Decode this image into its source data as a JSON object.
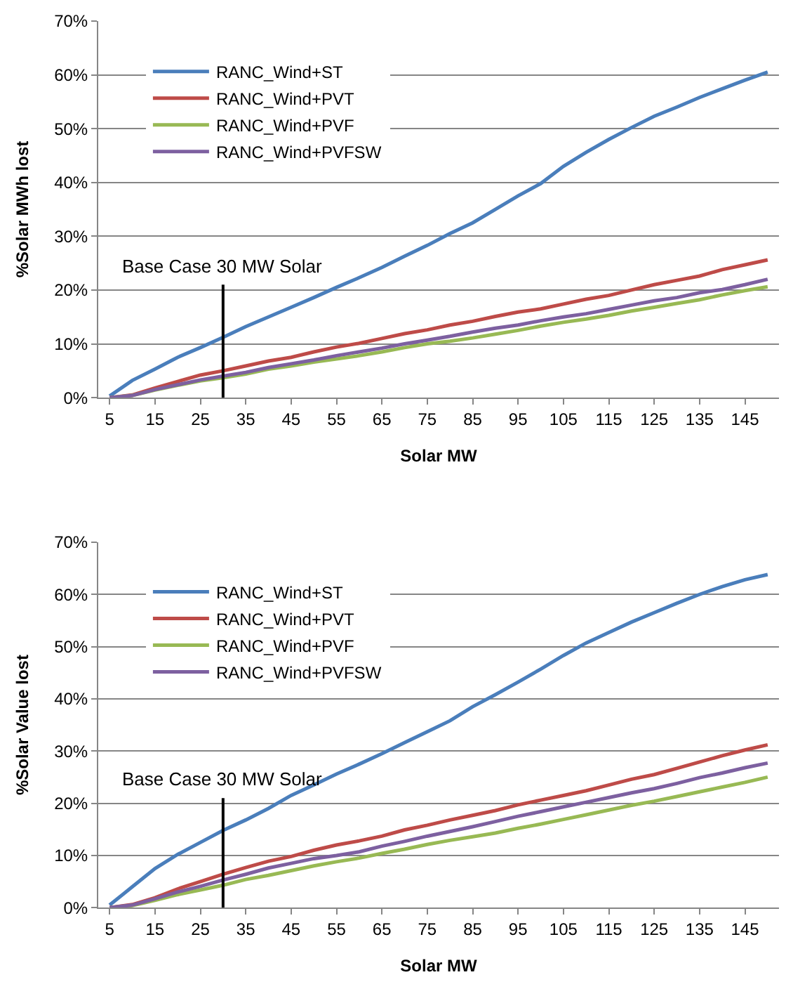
{
  "chart_data": [
    {
      "type": "line",
      "xlabel": "Solar MW",
      "ylabel": "%Solar MWh lost",
      "grid": "y",
      "legend": "top left",
      "line_style": "solid",
      "marker": "none",
      "x": [
        5,
        10,
        15,
        20,
        25,
        30,
        35,
        40,
        45,
        50,
        55,
        60,
        65,
        70,
        75,
        80,
        85,
        90,
        95,
        100,
        105,
        110,
        115,
        120,
        125,
        130,
        135,
        140,
        145,
        150
      ],
      "xlim": [
        2.5,
        152.5
      ],
      "xticks": [
        5,
        15,
        25,
        35,
        45,
        55,
        65,
        75,
        85,
        95,
        105,
        115,
        125,
        135,
        145
      ],
      "ylim": [
        0,
        70
      ],
      "yticks": [
        {
          "value": 0,
          "label": "0%"
        },
        {
          "value": 10,
          "label": "10%"
        },
        {
          "value": 20,
          "label": "20%"
        },
        {
          "value": 30,
          "label": "30%"
        },
        {
          "value": 40,
          "label": "40%"
        },
        {
          "value": 50,
          "label": "50%"
        },
        {
          "value": 60,
          "label": "60%"
        },
        {
          "value": 70,
          "label": "70%"
        }
      ],
      "series": [
        {
          "name": "RANC_Wind+ST",
          "color": "#4a7ebb",
          "values": [
            0.3,
            3.2,
            5.3,
            7.5,
            9.3,
            11.2,
            13.2,
            15.0,
            16.8,
            18.6,
            20.5,
            22.3,
            24.2,
            26.3,
            28.3,
            30.5,
            32.5,
            35,
            37.5,
            39.8,
            43,
            45.6,
            48,
            50.2,
            52.3,
            54,
            55.8,
            57.4,
            59,
            60.5
          ]
        },
        {
          "name": "RANC_Wind+PVT",
          "color": "#be4b48",
          "values": [
            0,
            0.5,
            1.8,
            3.0,
            4.2,
            5.0,
            5.9,
            6.8,
            7.5,
            8.5,
            9.4,
            10.1,
            11.0,
            11.9,
            12.6,
            13.5,
            14.2,
            15.1,
            15.9,
            16.5,
            17.4,
            18.3,
            19,
            20,
            21,
            21.8,
            22.6,
            23.8,
            24.7,
            25.6
          ]
        },
        {
          "name": "RANC_Wind+PVF",
          "color": "#98b954",
          "values": [
            0,
            0.4,
            1.4,
            2.3,
            3.1,
            3.7,
            4.4,
            5.3,
            5.9,
            6.6,
            7.2,
            7.8,
            8.5,
            9.3,
            10.0,
            10.5,
            11.1,
            11.8,
            12.5,
            13.3,
            14.0,
            14.6,
            15.3,
            16.1,
            16.8,
            17.5,
            18.2,
            19.1,
            19.9,
            20.6
          ]
        },
        {
          "name": "RANC_Wind+PVFSW",
          "color": "#7d60a0",
          "values": [
            0,
            0.4,
            1.5,
            2.4,
            3.3,
            4.0,
            4.7,
            5.6,
            6.3,
            7.0,
            7.8,
            8.5,
            9.2,
            10.0,
            10.7,
            11.4,
            12.2,
            12.9,
            13.5,
            14.3,
            15.0,
            15.6,
            16.4,
            17.2,
            18.0,
            18.6,
            19.5,
            20.1,
            21.0,
            22.0
          ]
        }
      ],
      "ref_lines": [
        {
          "axis": "x",
          "value": 30,
          "label": "Base Case 30 MW Solar",
          "color": "#000000"
        }
      ]
    },
    {
      "type": "line",
      "xlabel": "Solar MW",
      "ylabel": "%Solar Value lost",
      "grid": "y",
      "legend": "top left",
      "line_style": "solid",
      "marker": "none",
      "x": [
        5,
        10,
        15,
        20,
        25,
        30,
        35,
        40,
        45,
        50,
        55,
        60,
        65,
        70,
        75,
        80,
        85,
        90,
        95,
        100,
        105,
        110,
        115,
        120,
        125,
        130,
        135,
        140,
        145,
        150
      ],
      "xlim": [
        2.5,
        152.5
      ],
      "xticks": [
        5,
        15,
        25,
        35,
        45,
        55,
        65,
        75,
        85,
        95,
        105,
        115,
        125,
        135,
        145
      ],
      "ylim": [
        0,
        70
      ],
      "yticks": [
        {
          "value": 0,
          "label": "0%"
        },
        {
          "value": 10,
          "label": "10%"
        },
        {
          "value": 20,
          "label": "20%"
        },
        {
          "value": 30,
          "label": "30%"
        },
        {
          "value": 40,
          "label": "40%"
        },
        {
          "value": 50,
          "label": "50%"
        },
        {
          "value": 60,
          "label": "60%"
        },
        {
          "value": 70,
          "label": "70%"
        }
      ],
      "series": [
        {
          "name": "RANC_Wind+ST",
          "color": "#4a7ebb",
          "values": [
            0.5,
            4,
            7.5,
            10.2,
            12.5,
            14.8,
            16.8,
            19,
            21.5,
            23.5,
            25.6,
            27.5,
            29.5,
            31.6,
            33.7,
            35.8,
            38.5,
            40.8,
            43.2,
            45.7,
            48.3,
            50.7,
            52.7,
            54.7,
            56.5,
            58.3,
            60,
            61.5,
            62.8,
            63.8
          ]
        },
        {
          "name": "RANC_Wind+PVT",
          "color": "#be4b48",
          "values": [
            0,
            0.6,
            1.9,
            3.6,
            5.0,
            6.4,
            7.7,
            8.9,
            9.8,
            11,
            12,
            12.8,
            13.7,
            14.9,
            15.8,
            16.8,
            17.7,
            18.6,
            19.7,
            20.6,
            21.5,
            22.4,
            23.5,
            24.6,
            25.5,
            26.7,
            27.9,
            29.1,
            30.2,
            31.2
          ]
        },
        {
          "name": "RANC_Wind+PVF",
          "color": "#98b954",
          "values": [
            0,
            0.4,
            1.4,
            2.5,
            3.4,
            4.3,
            5.4,
            6.2,
            7.1,
            8.0,
            8.8,
            9.5,
            10.4,
            11.2,
            12.1,
            12.9,
            13.6,
            14.3,
            15.2,
            16.0,
            16.9,
            17.8,
            18.7,
            19.6,
            20.4,
            21.3,
            22.2,
            23.1,
            24.0,
            25.0
          ]
        },
        {
          "name": "RANC_Wind+PVFSW",
          "color": "#7d60a0",
          "values": [
            0,
            0.5,
            1.7,
            3.0,
            4.1,
            5.3,
            6.4,
            7.6,
            8.5,
            9.4,
            10.0,
            10.7,
            11.8,
            12.7,
            13.7,
            14.6,
            15.5,
            16.5,
            17.5,
            18.4,
            19.3,
            20.2,
            21.1,
            22.0,
            22.8,
            23.8,
            24.9,
            25.8,
            26.8,
            27.7
          ]
        }
      ],
      "ref_lines": [
        {
          "axis": "x",
          "value": 30,
          "label": "Base Case 30 MW Solar",
          "color": "#000000"
        }
      ]
    }
  ]
}
